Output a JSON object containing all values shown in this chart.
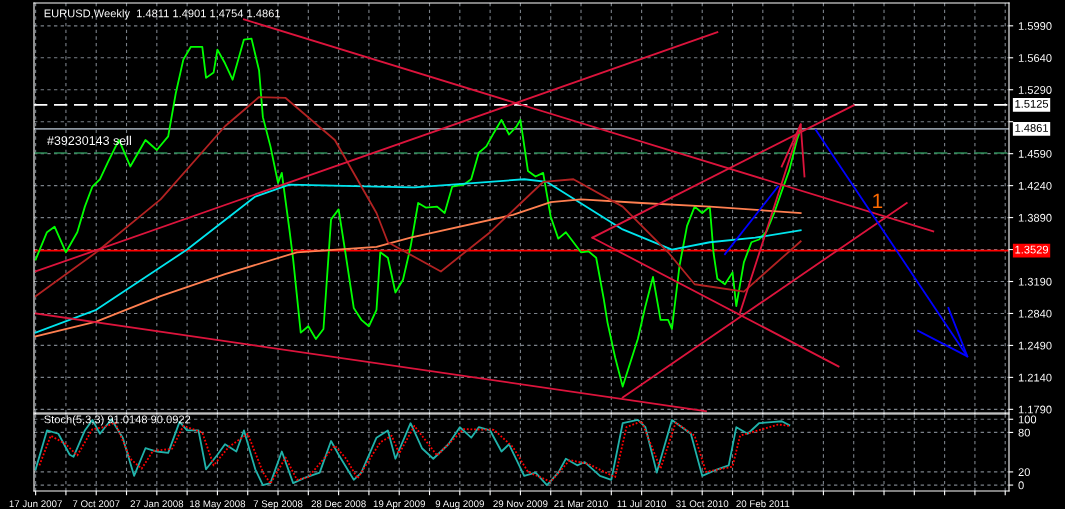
{
  "chart_data": [
    {
      "type": "line",
      "title": "EURUSD,Weekly  1.4811 1.4901 1.4754 1.4861",
      "xlim": [
        "2007-06-14",
        "2012-05-20"
      ],
      "ylim": [
        1.175,
        1.624
      ],
      "xticks": [
        {
          "value": "2007-06-17",
          "label": null
        },
        {
          "value": "2007-08-12",
          "label": null
        },
        {
          "value": "2007-10-07",
          "label": null
        },
        {
          "value": "2007-12-02",
          "label": null
        },
        {
          "value": "2008-01-27",
          "label": null
        },
        {
          "value": "2008-03-23",
          "label": null
        },
        {
          "value": "2008-05-18",
          "label": null
        },
        {
          "value": "2008-07-13",
          "label": null
        },
        {
          "value": "2008-09-07",
          "label": null
        },
        {
          "value": "2008-11-02",
          "label": null
        },
        {
          "value": "2008-12-28",
          "label": null
        },
        {
          "value": "2009-02-22",
          "label": null
        },
        {
          "value": "2009-04-19",
          "label": null
        },
        {
          "value": "2009-06-14",
          "label": null
        },
        {
          "value": "2009-08-09",
          "label": null
        },
        {
          "value": "2009-10-04",
          "label": null
        },
        {
          "value": "2009-11-29",
          "label": null
        },
        {
          "value": "2010-01-24",
          "label": null
        },
        {
          "value": "2010-03-21",
          "label": null
        },
        {
          "value": "2010-05-16",
          "label": null
        },
        {
          "value": "2010-07-11",
          "label": null
        },
        {
          "value": "2010-09-05",
          "label": null
        },
        {
          "value": "2010-10-31",
          "label": null
        },
        {
          "value": "2010-12-26",
          "label": null
        },
        {
          "value": "2011-02-20",
          "label": null
        },
        {
          "value": "2011-04-17",
          "label": null
        },
        {
          "value": "2011-06-12",
          "label": null
        },
        {
          "value": "2011-08-07",
          "label": null
        },
        {
          "value": "2011-10-02",
          "label": null
        },
        {
          "value": "2011-11-27",
          "label": null
        },
        {
          "value": "2012-01-22",
          "label": null
        },
        {
          "value": "2012-03-18",
          "label": null
        },
        {
          "value": "2012-05-13",
          "label": null
        }
      ],
      "yticks": [
        {
          "value": 1.179,
          "label": "1.1790"
        },
        {
          "value": 1.214,
          "label": "1.2140"
        },
        {
          "value": 1.249,
          "label": "1.2490"
        },
        {
          "value": 1.284,
          "label": "1.2840"
        },
        {
          "value": 1.319,
          "label": "1.3190"
        },
        {
          "value": 1.354,
          "label": null
        },
        {
          "value": 1.389,
          "label": "1.3890"
        },
        {
          "value": 1.424,
          "label": "1.4240"
        },
        {
          "value": 1.459,
          "label": "1.4590"
        },
        {
          "value": 1.494,
          "label": null
        },
        {
          "value": 1.529,
          "label": "1.5290"
        },
        {
          "value": 1.564,
          "label": "1.5640"
        },
        {
          "value": 1.599,
          "label": "1.5990"
        }
      ],
      "tick_labels": "y",
      "grid": true,
      "legend": false,
      "marker": "none",
      "ref_lines": [
        {
          "axis": "y",
          "value": 1.5125,
          "label": "1.5125",
          "color": "#ffffff",
          "line_style": "dashed"
        },
        {
          "axis": "y",
          "value": 1.4861,
          "label": "1.4861",
          "color": "#8c96a0",
          "line_style": "solid"
        },
        {
          "axis": "y",
          "value": 1.3529,
          "label": "1.3529",
          "color": "#ff0000",
          "line_style": "solid"
        },
        {
          "axis": "y",
          "value": 1.4597,
          "color": "#2e8b57",
          "line_style": "dashed"
        }
      ],
      "annotations": [
        {
          "text": "#39230143 sell",
          "x": "2007-07-08",
          "y": 1.4597
        },
        "1"
      ],
      "series": [
        {
          "color": "#00ff00",
          "x": [
            "2007-06-17",
            "2007-07-08",
            "2007-07-22",
            "2007-08-12",
            "2007-09-02",
            "2007-09-16",
            "2007-09-30",
            "2007-10-14",
            "2007-10-28",
            "2007-11-18",
            "2007-12-09",
            "2008-01-06",
            "2008-01-27",
            "2008-02-17",
            "2008-03-02",
            "2008-03-16",
            "2008-03-30",
            "2008-04-20",
            "2008-04-27",
            "2008-05-11",
            "2008-05-18",
            "2008-06-01",
            "2008-06-15",
            "2008-07-06",
            "2008-07-20",
            "2008-08-03",
            "2008-08-10",
            "2008-08-24",
            "2008-09-07",
            "2008-09-14",
            "2008-09-28",
            "2008-10-05",
            "2008-10-19",
            "2008-11-02",
            "2008-11-16",
            "2008-11-30",
            "2008-12-14",
            "2008-12-28",
            "2009-01-11",
            "2009-01-25",
            "2009-02-08",
            "2009-02-22",
            "2009-03-08",
            "2009-03-15",
            "2009-03-29",
            "2009-04-12",
            "2009-04-26",
            "2009-05-10",
            "2009-05-24",
            "2009-06-07",
            "2009-06-28",
            "2009-07-12",
            "2009-07-26",
            "2009-08-16",
            "2009-08-30",
            "2009-09-13",
            "2009-09-27",
            "2009-10-11",
            "2009-10-25",
            "2009-11-08",
            "2009-11-22",
            "2009-11-29",
            "2009-12-13",
            "2009-12-27",
            "2010-01-10",
            "2010-01-24",
            "2010-02-07",
            "2010-02-21",
            "2010-03-07",
            "2010-03-21",
            "2010-04-04",
            "2010-04-18",
            "2010-05-02",
            "2010-05-09",
            "2010-05-23",
            "2010-06-06",
            "2010-06-20",
            "2010-07-04",
            "2010-07-18",
            "2010-08-01",
            "2010-08-15",
            "2010-08-29",
            "2010-09-05",
            "2010-09-19",
            "2010-10-03",
            "2010-10-17",
            "2010-10-31",
            "2010-11-14",
            "2010-11-21",
            "2010-11-28",
            "2010-12-12",
            "2010-12-26",
            "2011-01-02",
            "2011-01-16",
            "2011-01-30",
            "2011-02-13",
            "2011-02-27",
            "2011-03-13",
            "2011-03-27",
            "2011-04-10",
            "2011-04-24",
            "2011-05-01"
          ],
          "values": [
            1.343,
            1.373,
            1.379,
            1.351,
            1.373,
            1.401,
            1.423,
            1.431,
            1.449,
            1.474,
            1.445,
            1.474,
            1.463,
            1.478,
            1.525,
            1.562,
            1.576,
            1.576,
            1.542,
            1.548,
            1.573,
            1.558,
            1.54,
            1.584,
            1.585,
            1.55,
            1.499,
            1.467,
            1.427,
            1.438,
            1.376,
            1.343,
            1.263,
            1.27,
            1.256,
            1.267,
            1.387,
            1.398,
            1.345,
            1.29,
            1.277,
            1.27,
            1.288,
            1.351,
            1.345,
            1.307,
            1.321,
            1.357,
            1.405,
            1.4,
            1.401,
            1.394,
            1.423,
            1.425,
            1.431,
            1.46,
            1.467,
            1.482,
            1.496,
            1.48,
            1.489,
            1.496,
            1.44,
            1.434,
            1.438,
            1.39,
            1.366,
            1.373,
            1.362,
            1.351,
            1.352,
            1.345,
            1.3,
            1.274,
            1.236,
            1.204,
            1.23,
            1.256,
            1.292,
            1.324,
            1.277,
            1.277,
            1.267,
            1.336,
            1.38,
            1.401,
            1.394,
            1.401,
            1.35,
            1.322,
            1.316,
            1.329,
            1.292,
            1.34,
            1.362,
            1.365,
            1.374,
            1.394,
            1.418,
            1.441,
            1.474,
            1.486
          ]
        },
        {
          "color": "#00e5ee",
          "x": [
            "2007-06-17",
            "2007-10-07",
            "2008-03-23",
            "2008-07-27",
            "2008-09-28",
            "2009-03-08",
            "2009-05-17",
            "2009-12-06",
            "2010-01-17",
            "2010-06-06",
            "2010-09-05",
            "2010-11-14",
            "2011-02-06",
            "2011-05-01"
          ],
          "values": [
            1.263,
            1.288,
            1.354,
            1.412,
            1.425,
            1.423,
            1.422,
            1.431,
            1.428,
            1.376,
            1.354,
            1.362,
            1.367,
            1.375
          ]
        },
        {
          "color": "#ff7f50",
          "x": [
            "2007-06-17",
            "2007-10-07",
            "2008-02-03",
            "2008-06-01",
            "2008-10-12",
            "2009-03-08",
            "2009-05-10",
            "2009-11-15",
            "2010-01-24",
            "2010-03-21",
            "2010-07-11",
            "2010-11-14",
            "2011-05-01"
          ],
          "values": [
            1.259,
            1.275,
            1.303,
            1.327,
            1.351,
            1.357,
            1.367,
            1.392,
            1.406,
            1.409,
            1.405,
            1.401,
            1.394
          ]
        },
        {
          "color": "#b22222",
          "x": [
            "2007-06-17",
            "2007-10-07",
            "2008-02-03",
            "2008-06-01",
            "2008-08-03",
            "2008-09-21",
            "2008-12-21",
            "2009-03-08",
            "2009-03-29",
            "2009-07-05",
            "2009-10-04",
            "2010-01-10",
            "2010-03-07",
            "2010-06-06",
            "2010-08-29",
            "2010-10-17",
            "2011-01-16",
            "2011-05-01"
          ],
          "values": [
            1.303,
            1.351,
            1.409,
            1.489,
            1.521,
            1.52,
            1.474,
            1.394,
            1.362,
            1.33,
            1.373,
            1.428,
            1.431,
            1.401,
            1.351,
            1.316,
            1.308,
            1.363
          ]
        },
        {
          "color": "#dc143c",
          "x": [
            "2008-07-06",
            "2012-01-01"
          ],
          "values": [
            1.606,
            1.374
          ]
        },
        {
          "color": "#dc143c",
          "x": [
            "2007-06-17",
            "2010-11-28"
          ],
          "values": [
            1.33,
            1.592
          ]
        },
        {
          "color": "#dc143c",
          "x": [
            "2007-06-17",
            "2010-11-07"
          ],
          "values": [
            1.284,
            1.177
          ]
        },
        {
          "color": "#dc143c",
          "x": [
            "2010-04-11",
            "2011-08-07"
          ],
          "values": [
            1.367,
            1.512
          ]
        },
        {
          "color": "#dc143c",
          "x": [
            "2010-04-11",
            "2011-07-10"
          ],
          "values": [
            1.367,
            1.226
          ]
        },
        {
          "color": "#dc143c",
          "x": [
            "2010-06-06",
            "2011-11-13"
          ],
          "values": [
            1.192,
            1.405
          ]
        },
        {
          "color": "#dc143c",
          "x": [
            "2011-01-09",
            "2011-05-01"
          ],
          "values": [
            1.285,
            1.491
          ]
        },
        {
          "color": "#dc143c",
          "x": [
            "2011-03-27",
            "2011-05-01",
            "2011-05-08"
          ],
          "values": [
            1.445,
            1.491,
            1.434
          ]
        },
        {
          "color": "#0000ff",
          "x": [
            "2011-05-29",
            "2012-03-04"
          ],
          "values": [
            1.485,
            1.237
          ]
        },
        {
          "color": "#0000ff",
          "x": [
            "2011-12-04",
            "2012-03-04",
            "2012-01-29"
          ],
          "values": [
            1.265,
            1.237,
            1.29
          ]
        },
        {
          "color": "#0000ff",
          "x": [
            "2010-12-12",
            "2011-03-20"
          ],
          "values": [
            1.349,
            1.423
          ]
        }
      ]
    },
    {
      "type": "line",
      "title": "Stoch(5,3,3) 91.0148 90.0922",
      "xlim": [
        "2007-06-14",
        "2012-05-20"
      ],
      "ylim": [
        -9,
        108
      ],
      "xticks": [
        {
          "value": "2007-06-17",
          "label": "17 Jun 2007"
        },
        {
          "value": "2007-08-12",
          "label": null
        },
        {
          "value": "2007-10-07",
          "label": "7 Oct 2007"
        },
        {
          "value": "2007-12-02",
          "label": null
        },
        {
          "value": "2008-01-27",
          "label": "27 Jan 2008"
        },
        {
          "value": "2008-03-23",
          "label": null
        },
        {
          "value": "2008-05-18",
          "label": "18 May 2008"
        },
        {
          "value": "2008-07-13",
          "label": null
        },
        {
          "value": "2008-09-07",
          "label": "7 Sep 2008"
        },
        {
          "value": "2008-11-02",
          "label": null
        },
        {
          "value": "2008-12-28",
          "label": "28 Dec 2008"
        },
        {
          "value": "2009-02-22",
          "label": null
        },
        {
          "value": "2009-04-19",
          "label": "19 Apr 2009"
        },
        {
          "value": "2009-06-14",
          "label": null
        },
        {
          "value": "2009-08-09",
          "label": "9 Aug 2009"
        },
        {
          "value": "2009-10-04",
          "label": null
        },
        {
          "value": "2009-11-29",
          "label": "29 Nov 2009"
        },
        {
          "value": "2010-01-24",
          "label": null
        },
        {
          "value": "2010-03-21",
          "label": "21 Mar 2010"
        },
        {
          "value": "2010-05-16",
          "label": null
        },
        {
          "value": "2010-07-11",
          "label": "11 Jul 2010"
        },
        {
          "value": "2010-09-05",
          "label": null
        },
        {
          "value": "2010-10-31",
          "label": "31 Oct 2010"
        },
        {
          "value": "2010-12-26",
          "label": null
        },
        {
          "value": "2011-02-20",
          "label": "20 Feb 2011"
        },
        {
          "value": "2011-04-17",
          "label": null
        },
        {
          "value": "2011-06-12",
          "label": null
        },
        {
          "value": "2011-08-07",
          "label": null
        },
        {
          "value": "2011-10-02",
          "label": null
        },
        {
          "value": "2011-11-27",
          "label": null
        },
        {
          "value": "2012-01-22",
          "label": null
        },
        {
          "value": "2012-03-18",
          "label": null
        },
        {
          "value": "2012-05-13",
          "label": null
        }
      ],
      "yticks": [
        0,
        20,
        80,
        100
      ],
      "grid": true,
      "legend": false,
      "marker": "none",
      "series": [
        {
          "color": "#20b2aa",
          "x": [
            "2007-06-17",
            "2007-07-08",
            "2007-07-29",
            "2007-08-19",
            "2007-08-26",
            "2007-09-16",
            "2007-09-30",
            "2007-10-14",
            "2007-11-04",
            "2007-11-25",
            "2007-12-16",
            "2008-01-06",
            "2008-01-27",
            "2008-02-17",
            "2008-03-09",
            "2008-03-23",
            "2008-04-13",
            "2008-04-27",
            "2008-05-18",
            "2008-06-01",
            "2008-06-22",
            "2008-07-06",
            "2008-07-27",
            "2008-08-10",
            "2008-08-24",
            "2008-09-14",
            "2008-10-05",
            "2008-10-26",
            "2008-11-23",
            "2008-12-14",
            "2008-12-28",
            "2009-01-25",
            "2009-02-08",
            "2009-03-08",
            "2009-03-29",
            "2009-04-12",
            "2009-05-10",
            "2009-05-31",
            "2009-06-21",
            "2009-07-19",
            "2009-08-09",
            "2009-08-30",
            "2009-09-13",
            "2009-10-04",
            "2009-10-25",
            "2009-11-08",
            "2009-12-06",
            "2009-12-27",
            "2010-01-17",
            "2010-02-07",
            "2010-02-21",
            "2010-03-14",
            "2010-03-28",
            "2010-04-25",
            "2010-05-16",
            "2010-06-06",
            "2010-07-04",
            "2010-07-18",
            "2010-08-08",
            "2010-09-05",
            "2010-10-10",
            "2010-10-31",
            "2010-11-28",
            "2010-12-19",
            "2011-01-02",
            "2011-01-23",
            "2011-02-13",
            "2011-03-13",
            "2011-03-27",
            "2011-04-10"
          ],
          "values": [
            24,
            83,
            78,
            46,
            43,
            83,
            99,
            78,
            100,
            72,
            14,
            56,
            51,
            49,
            96,
            83,
            83,
            24,
            46,
            62,
            51,
            83,
            24,
            0,
            3,
            51,
            3,
            11,
            19,
            67,
            46,
            8,
            19,
            72,
            83,
            40,
            94,
            56,
            40,
            62,
            88,
            72,
            88,
            83,
            51,
            62,
            14,
            19,
            0,
            19,
            40,
            30,
            35,
            14,
            8,
            94,
            99,
            88,
            19,
            99,
            78,
            14,
            24,
            30,
            88,
            78,
            94,
            96,
            97,
            91
          ]
        },
        {
          "color": "#ff0000",
          "line_style": "dotted",
          "x": [
            "2007-06-24",
            "2007-07-15",
            "2007-08-12",
            "2007-09-02",
            "2007-09-30",
            "2007-10-21",
            "2007-11-11",
            "2007-12-09",
            "2007-12-30",
            "2008-01-20",
            "2008-02-24",
            "2008-03-16",
            "2008-04-20",
            "2008-05-11",
            "2008-06-08",
            "2008-07-13",
            "2008-08-10",
            "2008-08-24",
            "2008-09-21",
            "2008-10-12",
            "2008-11-02",
            "2008-12-21",
            "2009-01-11",
            "2009-02-01",
            "2009-03-15",
            "2009-04-05",
            "2009-04-19",
            "2009-05-17",
            "2009-06-28",
            "2009-08-16",
            "2009-10-11",
            "2009-11-15",
            "2009-12-13",
            "2010-01-24",
            "2010-02-28",
            "2010-04-04",
            "2010-05-23",
            "2010-06-13",
            "2010-07-11",
            "2010-08-15",
            "2010-09-12",
            "2010-10-17",
            "2010-11-07",
            "2010-12-26",
            "2011-01-09",
            "2011-01-30",
            "2011-03-20",
            "2011-04-10"
          ],
          "values": [
            30,
            75,
            62,
            45,
            85,
            88,
            95,
            40,
            25,
            52,
            55,
            90,
            80,
            30,
            58,
            78,
            20,
            2,
            42,
            8,
            12,
            60,
            40,
            10,
            65,
            75,
            48,
            90,
            45,
            85,
            84,
            58,
            20,
            5,
            38,
            32,
            12,
            88,
            97,
            25,
            95,
            75,
            20,
            28,
            75,
            80,
            92,
            90
          ]
        }
      ]
    }
  ]
}
